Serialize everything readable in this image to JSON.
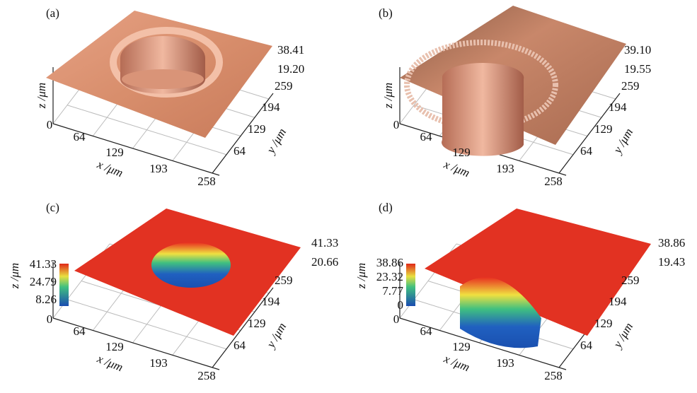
{
  "panels": [
    {
      "label": "(a)",
      "x_label": "x /μm",
      "y_label": "y /μm",
      "z_label": "z /μm",
      "x_ticks": [
        "0",
        "64",
        "129",
        "193",
        "258"
      ],
      "y_ticks": [
        "259",
        "194",
        "129",
        "64"
      ],
      "z_ticks": [
        "38.41",
        "19.20"
      ]
    },
    {
      "label": "(b)",
      "x_label": "x /μm",
      "y_label": "y /μm",
      "z_label": "z /μm",
      "x_ticks": [
        "0",
        "64",
        "129",
        "193",
        "258"
      ],
      "y_ticks": [
        "259",
        "194",
        "129",
        "64"
      ],
      "z_ticks": [
        "39.10",
        "19.55"
      ]
    },
    {
      "label": "(c)",
      "x_label": "x /μm",
      "y_label": "y /μm",
      "z_label": "z /μm",
      "x_ticks": [
        "0",
        "64",
        "129",
        "193",
        "258"
      ],
      "y_ticks": [
        "259",
        "194",
        "129",
        "64"
      ],
      "z_ticks": [
        "41.33",
        "20.66"
      ],
      "colorbar_ticks": [
        "41.33",
        "24.79",
        "8.26"
      ]
    },
    {
      "label": "(d)",
      "x_label": "x /μm",
      "y_label": "y /μm",
      "z_label": "z /μm",
      "x_ticks": [
        "0",
        "64",
        "129",
        "193"
      ],
      "y_ticks": [
        "259",
        "194",
        "129",
        "64"
      ],
      "z_ticks": [
        "38.86",
        "19.43"
      ],
      "colorbar_ticks": [
        "38.86",
        "23.32",
        "7.77",
        "0"
      ],
      "x_end_tick": "258"
    }
  ]
}
